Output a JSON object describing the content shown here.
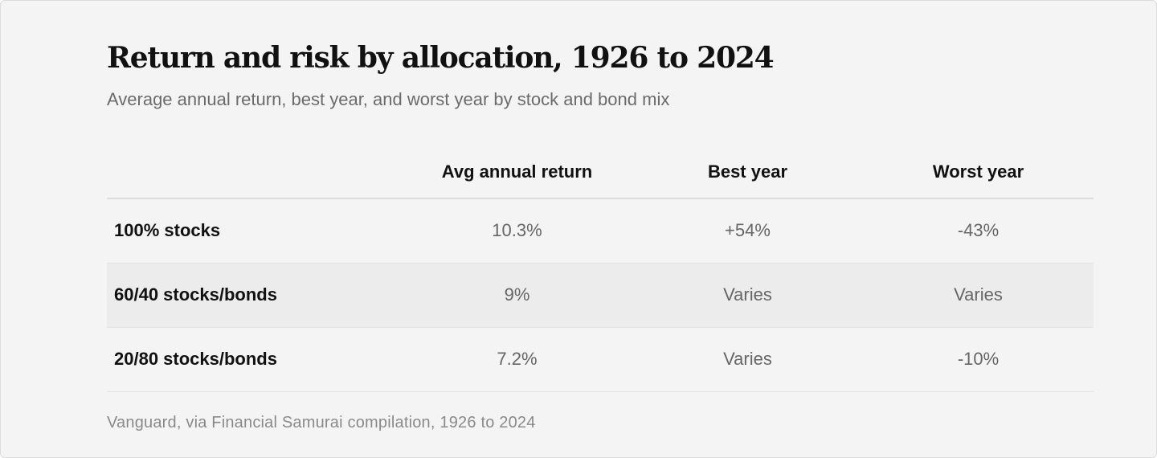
{
  "chart_data": {
    "type": "table",
    "title": "Return and risk by allocation, 1926 to 2024",
    "subtitle": "Average annual return, best year, and worst year by stock and bond mix",
    "columns": [
      "",
      "Avg annual return",
      "Best year",
      "Worst year"
    ],
    "rows": [
      {
        "label": "100% stocks",
        "avg_annual_return": "10.3%",
        "best_year": "+54%",
        "worst_year": "-43%"
      },
      {
        "label": "60/40 stocks/bonds",
        "avg_annual_return": "9%",
        "best_year": "Varies",
        "worst_year": "Varies"
      },
      {
        "label": "20/80 stocks/bonds",
        "avg_annual_return": "7.2%",
        "best_year": "Varies",
        "worst_year": "-10%"
      }
    ],
    "source": "Vanguard, via Financial Samurai compilation, 1926 to 2024"
  },
  "colors": {
    "card_background": "#f4f4f4",
    "shaded_row": "#ececec",
    "title_text": "#111111",
    "muted_text": "#6b6b6b"
  }
}
